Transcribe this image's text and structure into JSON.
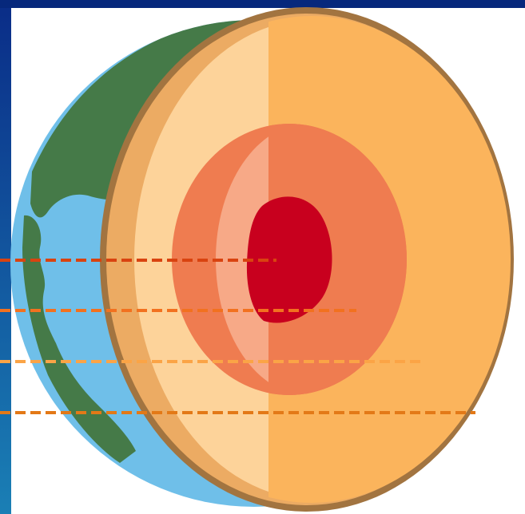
{
  "diagram": {
    "layers": [
      {
        "name": "inner-core",
        "color": "#c8001e"
      },
      {
        "name": "outer-core",
        "color": "#ef7c50"
      },
      {
        "name": "outer-core-highlight",
        "color": "#f7a987"
      },
      {
        "name": "mantle",
        "color": "#fbb45c"
      },
      {
        "name": "mantle-highlight",
        "color": "#fdd39a"
      },
      {
        "name": "crust",
        "color": "#ecab63"
      },
      {
        "name": "crust-rim",
        "color": "#a27440"
      }
    ],
    "surface": {
      "ocean": "#6fbfe9",
      "land": "#457a48"
    },
    "pointer_lines": [
      {
        "target": "inner-core",
        "color": "#d94310"
      },
      {
        "target": "outer-core",
        "color": "#f2711f"
      },
      {
        "target": "mantle",
        "color": "#fba446"
      },
      {
        "target": "crust",
        "color": "#e37917"
      }
    ],
    "frame": {
      "top_bar": "#06287c",
      "left_strip_top": "#0a2c87",
      "left_strip_bottom": "#1a7fb5"
    }
  }
}
